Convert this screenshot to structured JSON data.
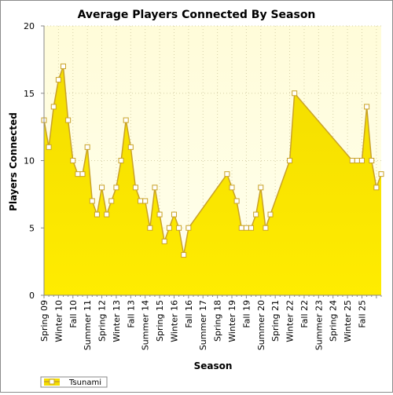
{
  "chart_data": {
    "type": "area",
    "title": "Average Players Connected By Season",
    "xlabel": "Season",
    "ylabel": "Players Connected",
    "ylim": [
      0,
      20
    ],
    "yticks": [
      0,
      5,
      10,
      15,
      20
    ],
    "grid": true,
    "legend_position": "bottom-left",
    "x_tick_labels": [
      "Spring 09",
      "Winter 10",
      "Fall 10",
      "Summer 11",
      "Spring 12",
      "Winter 13",
      "Fall 13",
      "Summer 14",
      "Spring 15",
      "Winter 16",
      "Fall 16",
      "Summer 17",
      "Spring 18",
      "Winter 19",
      "Fall 19",
      "Summer 20",
      "Spring 21",
      "Winter 22",
      "Fall 22",
      "Summer 23",
      "Spring 24",
      "Winter 25",
      "Fall 25"
    ],
    "x_tick_period": 3,
    "colors": {
      "fill_top": "#f3dd00",
      "fill_bottom": "#ffec00",
      "line": "#c9a227",
      "marker_fill": "#ffffff",
      "plot_bg_top": "#fffcd9",
      "plot_bg_bottom": "#ffffee",
      "grid": "#d6d0a8"
    },
    "series": [
      {
        "name": "Tsunami",
        "values": [
          13,
          11,
          14,
          16,
          17,
          13,
          10,
          9,
          9,
          11,
          7,
          6,
          8,
          6,
          7,
          8,
          10,
          13,
          11,
          8,
          7,
          7,
          5,
          8,
          6,
          4,
          5,
          6,
          5,
          3,
          5,
          null,
          null,
          null,
          null,
          null,
          null,
          null,
          9,
          8,
          7,
          5,
          5,
          5,
          6,
          8,
          5,
          6,
          null,
          null,
          null,
          10,
          15,
          null,
          null,
          null,
          null,
          null,
          null,
          null,
          null,
          null,
          null,
          null,
          10,
          10,
          10,
          14,
          10,
          8,
          9
        ]
      }
    ]
  }
}
